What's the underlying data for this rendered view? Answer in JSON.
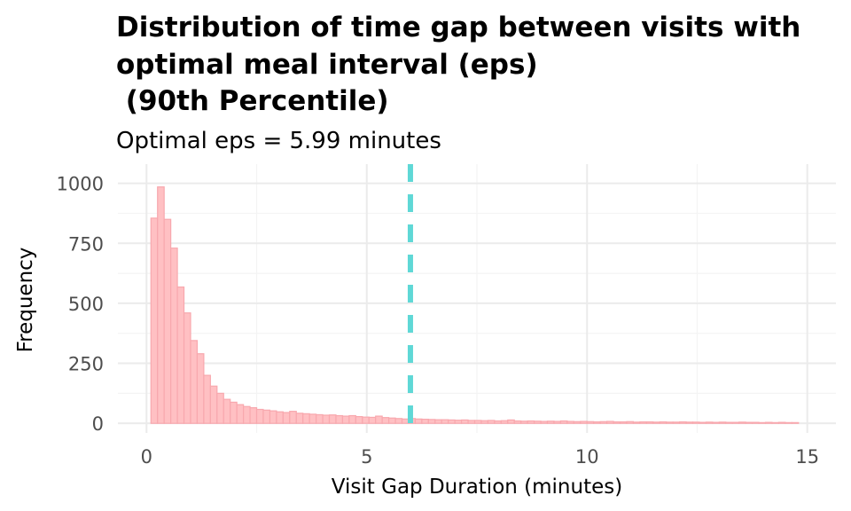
{
  "chart_data": {
    "type": "bar",
    "title_lines": [
      "Distribution of time gap between visits with",
      "optimal meal interval (eps)",
      " (90th Percentile)"
    ],
    "subtitle": "Optimal eps = 5.99 minutes",
    "xlabel": "Visit Gap Duration (minutes)",
    "ylabel": "Frequency",
    "xlim": [
      -0.65,
      15.65
    ],
    "ylim": [
      -40,
      1080
    ],
    "x_ticks": [
      0,
      5,
      10,
      15
    ],
    "x_tick_labels": [
      "0",
      "5",
      "10",
      "15"
    ],
    "y_ticks": [
      0,
      250,
      500,
      750,
      1000
    ],
    "y_tick_labels": [
      "0",
      "250",
      "500",
      "750",
      "1000"
    ],
    "grid": true,
    "bin_width": 0.15,
    "bin_start": 0.1,
    "series": [
      {
        "values": [
          855,
          985,
          850,
          730,
          568,
          460,
          345,
          290,
          200,
          155,
          125,
          100,
          88,
          78,
          70,
          65,
          58,
          55,
          52,
          48,
          45,
          50,
          42,
          40,
          38,
          36,
          34,
          35,
          32,
          30,
          32,
          28,
          26,
          25,
          30,
          24,
          22,
          20,
          18,
          20,
          18,
          17,
          16,
          15,
          15,
          14,
          13,
          14,
          12,
          12,
          11,
          12,
          10,
          11,
          14,
          10,
          9,
          10,
          9,
          8,
          9,
          8,
          10,
          8,
          7,
          8,
          7,
          6,
          7,
          8,
          6,
          6,
          7,
          5,
          6,
          6,
          5,
          6,
          5,
          5,
          6,
          5,
          5,
          4,
          5,
          4,
          5,
          4,
          4,
          5,
          4,
          4,
          3,
          4,
          3,
          4,
          3,
          3
        ]
      }
    ],
    "vline": {
      "x": 5.99
    },
    "colors": {
      "bar_fill": "#ffc0c3",
      "bar_stroke": "#f8a8ae",
      "vline": "#5fd8d6",
      "grid_major": "#ebebeb",
      "grid_minor": "#f4f4f4"
    }
  }
}
